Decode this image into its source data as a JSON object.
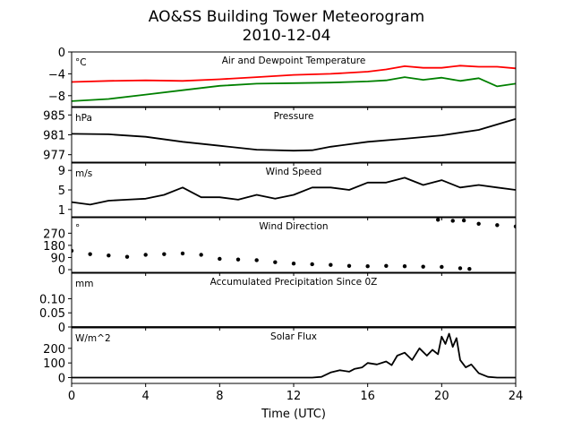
{
  "figure": {
    "title": "AO&SS Building Tower Meteorogram",
    "subtitle": "2010-12-04",
    "xlabel": "Time (UTC)",
    "xticks": [
      0,
      4,
      8,
      12,
      16,
      20,
      24
    ],
    "xlim": [
      0,
      24
    ]
  },
  "chart_data": [
    {
      "type": "line",
      "title": "Air and Dewpoint Temperature",
      "ylabel": "°C",
      "ylim": [
        -10,
        0
      ],
      "yticks": [
        0,
        -4,
        -8
      ],
      "grid": false,
      "x": [
        0,
        2,
        4,
        6,
        8,
        10,
        12,
        14,
        16,
        17,
        18,
        19,
        20,
        21,
        22,
        23,
        24
      ],
      "series": [
        {
          "name": "",
          "color": "#ff0000",
          "values": [
            -5.5,
            -5.3,
            -5.2,
            -5.3,
            -5.0,
            -4.6,
            -4.2,
            -4.0,
            -3.6,
            -3.2,
            -2.6,
            -2.9,
            -2.9,
            -2.5,
            -2.7,
            -2.7,
            -3.0
          ]
        },
        {
          "name": "",
          "color": "#008000",
          "values": [
            -9.0,
            -8.6,
            -7.8,
            -7.0,
            -6.2,
            -5.8,
            -5.7,
            -5.6,
            -5.4,
            -5.2,
            -4.6,
            -5.1,
            -4.7,
            -5.3,
            -4.8,
            -6.3,
            -5.8
          ]
        }
      ]
    },
    {
      "type": "line",
      "title": "Pressure",
      "ylabel": "hPa",
      "ylim": [
        975.5,
        986.5
      ],
      "yticks": [
        985,
        981,
        977
      ],
      "grid": false,
      "x": [
        0,
        2,
        4,
        6,
        8,
        10,
        12,
        13,
        14,
        16,
        18,
        20,
        22,
        24
      ],
      "series": [
        {
          "name": "",
          "color": "#000000",
          "values": [
            981.2,
            981.1,
            980.6,
            979.6,
            978.8,
            978.0,
            977.8,
            977.9,
            978.6,
            979.6,
            980.2,
            980.9,
            982.0,
            984.2
          ]
        }
      ]
    },
    {
      "type": "line",
      "title": "Wind Speed",
      "ylabel": "m/s",
      "ylim": [
        -0.5,
        10.5
      ],
      "yticks": [
        9,
        5,
        1
      ],
      "grid": false,
      "x": [
        0,
        1,
        2,
        3,
        4,
        5,
        6,
        7,
        8,
        9,
        10,
        11,
        12,
        13,
        14,
        15,
        16,
        17,
        18,
        19,
        20,
        21,
        22,
        23,
        24
      ],
      "series": [
        {
          "name": "",
          "color": "#000000",
          "values": [
            2.5,
            2.0,
            2.8,
            3.0,
            3.2,
            4.0,
            5.5,
            3.5,
            3.5,
            3.0,
            4.0,
            3.2,
            4.0,
            5.5,
            5.5,
            5.0,
            6.5,
            6.5,
            7.5,
            6.0,
            7.0,
            5.5,
            6.0,
            5.5,
            5.0
          ]
        }
      ]
    },
    {
      "type": "scatter",
      "title": "Wind Direction",
      "ylabel": "°",
      "ylim": [
        -20,
        385
      ],
      "yticks": [
        270,
        180,
        90,
        0
      ],
      "grid": false,
      "x": [
        0,
        1,
        2,
        3,
        4,
        5,
        6,
        7,
        8,
        9,
        10,
        11,
        12,
        13,
        14,
        15,
        16,
        17,
        18,
        19,
        20,
        21,
        21.5,
        19.8,
        20.6,
        21.2,
        22,
        23,
        24
      ],
      "series": [
        {
          "name": "",
          "color": "#000000",
          "values": [
            140,
            115,
            105,
            95,
            110,
            115,
            120,
            110,
            80,
            75,
            70,
            55,
            45,
            40,
            35,
            28,
            25,
            28,
            25,
            22,
            20,
            10,
            5,
            370,
            362,
            365,
            340,
            330,
            320
          ]
        }
      ]
    },
    {
      "type": "line",
      "title": "Accumulated Precipitation Since 0Z",
      "ylabel": "mm",
      "ylim": [
        0,
        0.19
      ],
      "yticks": [
        0.1,
        0.05,
        0.0
      ],
      "grid": false,
      "x": [
        0,
        24
      ],
      "series": [
        {
          "name": "",
          "color": "#000000",
          "values": [
            0,
            0
          ]
        }
      ]
    },
    {
      "type": "line",
      "title": "Solar Flux",
      "ylabel": "W/m^2",
      "ylim": [
        -40,
        340
      ],
      "yticks": [
        200,
        100,
        0
      ],
      "grid": false,
      "x": [
        0,
        13,
        13.5,
        14,
        14.5,
        15,
        15.3,
        15.7,
        16,
        16.5,
        17,
        17.3,
        17.6,
        18,
        18.4,
        18.8,
        19.2,
        19.5,
        19.8,
        20,
        20.2,
        20.4,
        20.6,
        20.8,
        21,
        21.3,
        21.6,
        22,
        22.5,
        23,
        24
      ],
      "series": [
        {
          "name": "",
          "color": "#000000",
          "values": [
            0,
            0,
            5,
            35,
            50,
            40,
            60,
            70,
            100,
            90,
            110,
            85,
            150,
            170,
            120,
            200,
            150,
            190,
            160,
            280,
            230,
            300,
            210,
            270,
            120,
            70,
            90,
            30,
            5,
            0,
            0
          ]
        }
      ]
    }
  ]
}
